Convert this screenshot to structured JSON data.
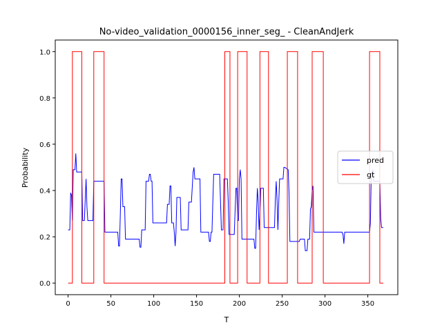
{
  "chart_data": {
    "type": "line",
    "title": "No-video_validation_0000156_inner_seg_ - CleanAndJerk",
    "xlabel": "T",
    "ylabel": "Probability",
    "xlim": [
      -15,
      385
    ],
    "ylim": [
      -0.05,
      1.05
    ],
    "xticks": [
      0,
      50,
      100,
      150,
      200,
      250,
      300,
      350
    ],
    "yticks": [
      0.0,
      0.2,
      0.4,
      0.6,
      0.8,
      1.0
    ],
    "xtick_labels": [
      "0",
      "50",
      "100",
      "150",
      "200",
      "250",
      "300",
      "350"
    ],
    "ytick_labels": [
      "0.0",
      "0.2",
      "0.4",
      "0.6",
      "0.8",
      "1.0"
    ],
    "grid": false,
    "legend_position": "center-right",
    "series": [
      {
        "name": "pred",
        "color": "#0000ff",
        "points": [
          [
            0,
            0.23
          ],
          [
            2,
            0.23
          ],
          [
            3,
            0.39
          ],
          [
            4,
            0.38
          ],
          [
            5,
            0.27
          ],
          [
            6,
            0.49
          ],
          [
            8,
            0.49
          ],
          [
            9,
            0.56
          ],
          [
            10,
            0.48
          ],
          [
            16,
            0.48
          ],
          [
            17,
            0.27
          ],
          [
            19,
            0.27
          ],
          [
            21,
            0.45
          ],
          [
            22,
            0.33
          ],
          [
            23,
            0.27
          ],
          [
            29,
            0.27
          ],
          [
            30,
            0.44
          ],
          [
            42,
            0.44
          ],
          [
            43,
            0.22
          ],
          [
            58,
            0.22
          ],
          [
            59,
            0.16
          ],
          [
            60,
            0.16
          ],
          [
            61,
            0.3
          ],
          [
            62,
            0.45
          ],
          [
            63,
            0.45
          ],
          [
            64,
            0.33
          ],
          [
            66,
            0.33
          ],
          [
            67,
            0.19
          ],
          [
            83,
            0.19
          ],
          [
            84,
            0.155
          ],
          [
            85,
            0.155
          ],
          [
            86,
            0.23
          ],
          [
            90,
            0.23
          ],
          [
            91,
            0.44
          ],
          [
            94,
            0.44
          ],
          [
            95,
            0.47
          ],
          [
            96,
            0.47
          ],
          [
            97,
            0.44
          ],
          [
            98,
            0.44
          ],
          [
            99,
            0.26
          ],
          [
            115,
            0.26
          ],
          [
            116,
            0.34
          ],
          [
            118,
            0.34
          ],
          [
            119,
            0.42
          ],
          [
            120,
            0.42
          ],
          [
            121,
            0.26
          ],
          [
            123,
            0.26
          ],
          [
            124,
            0.22
          ],
          [
            125,
            0.16
          ],
          [
            126,
            0.22
          ],
          [
            127,
            0.37
          ],
          [
            131,
            0.37
          ],
          [
            132,
            0.23
          ],
          [
            140,
            0.23
          ],
          [
            141,
            0.35
          ],
          [
            144,
            0.35
          ],
          [
            146,
            0.48
          ],
          [
            147,
            0.5
          ],
          [
            148,
            0.45
          ],
          [
            154,
            0.45
          ],
          [
            155,
            0.22
          ],
          [
            164,
            0.22
          ],
          [
            165,
            0.18
          ],
          [
            166,
            0.18
          ],
          [
            167,
            0.22
          ],
          [
            168,
            0.22
          ],
          [
            169,
            0.35
          ],
          [
            170,
            0.47
          ],
          [
            171,
            0.47
          ],
          [
            177,
            0.47
          ],
          [
            178,
            0.35
          ],
          [
            179,
            0.23
          ],
          [
            181,
            0.23
          ],
          [
            182,
            0.45
          ],
          [
            183,
            0.45
          ],
          [
            184,
            0.45
          ],
          [
            186,
            0.45
          ],
          [
            187,
            0.35
          ],
          [
            188,
            0.21
          ],
          [
            194,
            0.21
          ],
          [
            195,
            0.31
          ],
          [
            196,
            0.41
          ],
          [
            197,
            0.41
          ],
          [
            198,
            0.27
          ],
          [
            199,
            0.27
          ],
          [
            200,
            0.45
          ],
          [
            201,
            0.49
          ],
          [
            202,
            0.45
          ],
          [
            203,
            0.19
          ],
          [
            217,
            0.19
          ],
          [
            218,
            0.15
          ],
          [
            219,
            0.15
          ],
          [
            220,
            0.3
          ],
          [
            221,
            0.41
          ],
          [
            222,
            0.35
          ],
          [
            223,
            0.23
          ],
          [
            224,
            0.3
          ],
          [
            225,
            0.41
          ],
          [
            228,
            0.41
          ],
          [
            229,
            0.24
          ],
          [
            241,
            0.24
          ],
          [
            242,
            0.36
          ],
          [
            243,
            0.44
          ],
          [
            244,
            0.36
          ],
          [
            245,
            0.23
          ],
          [
            246,
            0.35
          ],
          [
            247,
            0.45
          ],
          [
            251,
            0.45
          ],
          [
            252,
            0.5
          ],
          [
            253,
            0.5
          ],
          [
            257,
            0.49
          ],
          [
            258,
            0.39
          ],
          [
            259,
            0.18
          ],
          [
            270,
            0.18
          ],
          [
            271,
            0.19
          ],
          [
            276,
            0.19
          ],
          [
            277,
            0.14
          ],
          [
            279,
            0.14
          ],
          [
            280,
            0.19
          ],
          [
            282,
            0.19
          ],
          [
            283,
            0.32
          ],
          [
            284,
            0.33
          ],
          [
            285,
            0.4
          ],
          [
            286,
            0.42
          ],
          [
            287,
            0.22
          ],
          [
            320,
            0.22
          ],
          [
            321,
            0.21
          ],
          [
            322,
            0.17
          ],
          [
            323,
            0.22
          ],
          [
            352,
            0.22
          ],
          [
            353,
            0.26
          ],
          [
            354,
            0.47
          ],
          [
            356,
            0.49
          ],
          [
            357,
            0.44
          ],
          [
            364,
            0.44
          ],
          [
            365,
            0.28
          ],
          [
            366,
            0.24
          ],
          [
            368,
            0.24
          ]
        ]
      },
      {
        "name": "gt",
        "color": "#ff0000",
        "points": [
          [
            0,
            0
          ],
          [
            5,
            0
          ],
          [
            5,
            1
          ],
          [
            16,
            1
          ],
          [
            16,
            0
          ],
          [
            30,
            0
          ],
          [
            30,
            1
          ],
          [
            42,
            1
          ],
          [
            42,
            0
          ],
          [
            183,
            0
          ],
          [
            183,
            1
          ],
          [
            189,
            1
          ],
          [
            189,
            0
          ],
          [
            198,
            0
          ],
          [
            198,
            1
          ],
          [
            209,
            1
          ],
          [
            209,
            0
          ],
          [
            224,
            0
          ],
          [
            224,
            1
          ],
          [
            234,
            1
          ],
          [
            234,
            0
          ],
          [
            256,
            0
          ],
          [
            256,
            1
          ],
          [
            268,
            1
          ],
          [
            268,
            0
          ],
          [
            285,
            0
          ],
          [
            285,
            1
          ],
          [
            298,
            1
          ],
          [
            298,
            0
          ],
          [
            352,
            0
          ],
          [
            352,
            1
          ],
          [
            364,
            1
          ],
          [
            364,
            0
          ],
          [
            368,
            0
          ]
        ]
      }
    ]
  }
}
